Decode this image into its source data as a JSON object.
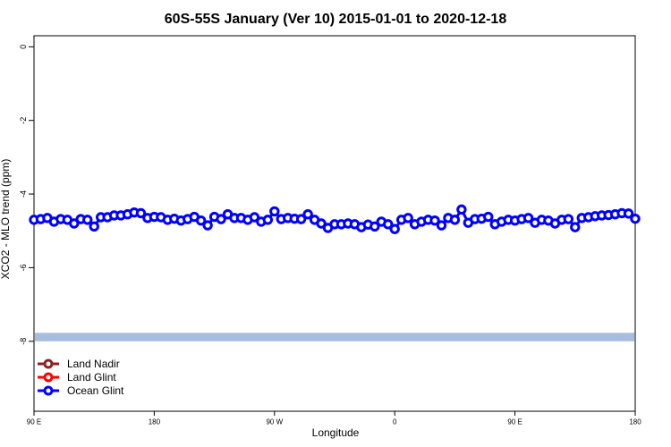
{
  "chart_data": {
    "type": "line",
    "title": "60S-55S January (Ver 10)   2015-01-01 to 2020-12-18",
    "xlabel": "Longitude",
    "ylabel": "XCO2 - MLO trend (ppm)",
    "x": [
      90,
      95,
      100,
      105,
      110,
      115,
      120,
      125,
      130,
      135,
      140,
      145,
      150,
      155,
      160,
      165,
      170,
      175,
      180,
      185,
      190,
      195,
      200,
      205,
      210,
      215,
      220,
      225,
      230,
      235,
      240,
      245,
      250,
      255,
      260,
      265,
      270,
      275,
      280,
      285,
      290,
      295,
      300,
      305,
      310,
      315,
      320,
      325,
      330,
      335,
      340,
      345,
      350,
      355,
      360,
      365,
      370,
      375,
      380,
      385,
      390,
      395,
      400,
      405,
      410,
      415,
      420,
      425,
      430,
      435,
      440,
      445,
      450,
      455,
      460,
      465,
      470,
      475,
      480,
      485,
      490,
      495,
      500,
      505,
      510,
      515,
      520,
      525,
      530,
      535,
      540
    ],
    "series": [
      {
        "name": "Land Nadir",
        "color": "#8b2323",
        "values": [
          null,
          null,
          null,
          null,
          null,
          null,
          null,
          null,
          null,
          null,
          null,
          null,
          null,
          null,
          null,
          null,
          null,
          null,
          null,
          null,
          null,
          null,
          null,
          null,
          null,
          null,
          null,
          null,
          null,
          null,
          null,
          null,
          null,
          null,
          null,
          null,
          null,
          null,
          null,
          null,
          null,
          null,
          null,
          null,
          null,
          null,
          null,
          null,
          null,
          null,
          null,
          null,
          null,
          null,
          null,
          null,
          null,
          null,
          null,
          null,
          null,
          null,
          null,
          null,
          null,
          null,
          null,
          null,
          null,
          null,
          null,
          null,
          null,
          null,
          null,
          null,
          null,
          null,
          null,
          null,
          null,
          null,
          null,
          null,
          null,
          null,
          null,
          null,
          null,
          null,
          null
        ]
      },
      {
        "name": "Land Glint",
        "color": "#ff0000",
        "values": [
          null,
          null,
          null,
          null,
          null,
          null,
          null,
          null,
          null,
          null,
          null,
          null,
          null,
          null,
          null,
          null,
          null,
          null,
          null,
          null,
          null,
          null,
          null,
          null,
          null,
          null,
          null,
          null,
          null,
          null,
          null,
          null,
          null,
          null,
          null,
          null,
          null,
          null,
          null,
          null,
          null,
          null,
          null,
          null,
          null,
          null,
          null,
          null,
          null,
          null,
          null,
          null,
          null,
          null,
          null,
          null,
          null,
          null,
          null,
          null,
          null,
          null,
          null,
          null,
          null,
          null,
          null,
          null,
          null,
          null,
          null,
          null,
          null,
          null,
          null,
          null,
          null,
          null,
          null,
          null,
          null,
          null,
          null,
          null,
          null,
          null,
          null,
          null,
          null,
          null,
          null
        ]
      },
      {
        "name": "Ocean Glint",
        "color": "#0000ff",
        "values": [
          -4.7,
          -4.68,
          -4.65,
          -4.75,
          -4.68,
          -4.7,
          -4.8,
          -4.68,
          -4.7,
          -4.88,
          -4.63,
          -4.63,
          -4.58,
          -4.58,
          -4.55,
          -4.5,
          -4.52,
          -4.65,
          -4.62,
          -4.63,
          -4.7,
          -4.67,
          -4.72,
          -4.68,
          -4.62,
          -4.72,
          -4.85,
          -4.62,
          -4.68,
          -4.55,
          -4.65,
          -4.65,
          -4.7,
          -4.63,
          -4.75,
          -4.7,
          -4.47,
          -4.68,
          -4.65,
          -4.67,
          -4.68,
          -4.55,
          -4.7,
          -4.8,
          -4.92,
          -4.82,
          -4.82,
          -4.8,
          -4.82,
          -4.9,
          -4.83,
          -4.88,
          -4.75,
          -4.82,
          -4.95,
          -4.7,
          -4.65,
          -4.82,
          -4.75,
          -4.7,
          -4.72,
          -4.85,
          -4.65,
          -4.7,
          -4.42,
          -4.78,
          -4.68,
          -4.67,
          -4.62,
          -4.82,
          -4.75,
          -4.7,
          -4.72,
          -4.68,
          -4.65,
          -4.78,
          -4.7,
          -4.72,
          -4.8,
          -4.7,
          -4.68,
          -4.9,
          -4.65,
          -4.63,
          -4.6,
          -4.58,
          -4.57,
          -4.55,
          -4.52,
          -4.53,
          -4.67
        ]
      }
    ],
    "reference_band": {
      "values": [
        -7.77,
        -8.0
      ],
      "color": "#a7bde0"
    },
    "xlim": [
      90,
      540
    ],
    "xticks": [
      {
        "value": 90,
        "label": "90 E"
      },
      180,
      {
        "value": 270,
        "label": "90 W"
      },
      {
        "value": 360,
        "label": "0"
      },
      {
        "value": 450,
        "label": "90 E"
      },
      {
        "value": 540,
        "label": "180"
      }
    ],
    "ylim": [
      -9.9,
      0.3
    ],
    "yticks": [
      0,
      -2,
      -4,
      -6,
      -8
    ],
    "legend": "bottom-left"
  }
}
